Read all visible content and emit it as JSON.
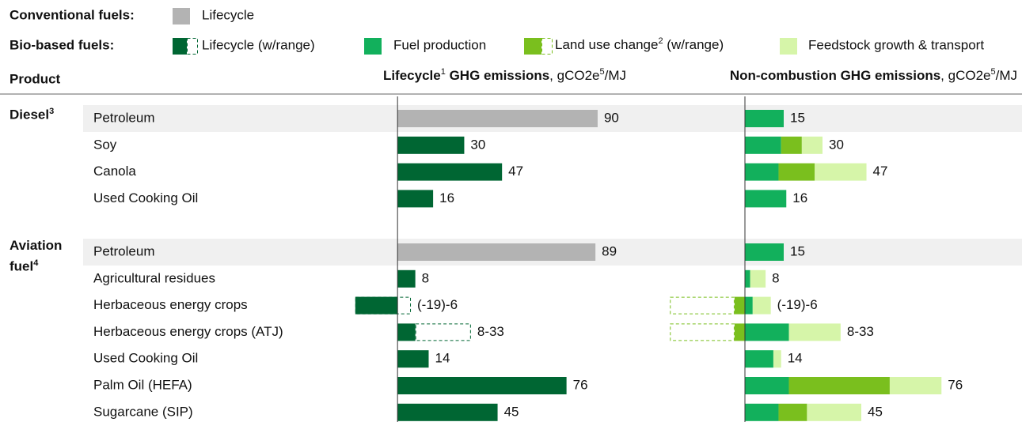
{
  "chart_data": {
    "type": "bar",
    "legend": {
      "conventional_heading": "Conventional fuels:",
      "conventional_lifecycle": {
        "label": "Lifecycle",
        "color": "#b3b3b3"
      },
      "bio_heading": "Bio-based fuels:",
      "bio_lifecycle": {
        "label": "Lifecycle (w/range)",
        "color": "#006633"
      },
      "fuel_production": {
        "label": "Fuel production",
        "color": "#12b05c"
      },
      "land_use_change": {
        "label": "Land use change",
        "sup": "2",
        "suffix": " (w/range)",
        "color": "#7abf1e"
      },
      "feedstock": {
        "label": "Feedstock growth & transport",
        "color": "#d6f5a9"
      }
    },
    "product_header": "Product",
    "left_header": {
      "bold": "Lifecycle",
      "sup": "1",
      "bold2": " GHG emissions",
      "unit": ", gCO2e",
      "sup2": "5",
      "unit2": "/MJ"
    },
    "right_header": {
      "bold": "Non-combustion GHG emissions",
      "unit": ", gCO2e",
      "sup2": "5",
      "unit2": "/MJ"
    },
    "left_xlim": [
      -20,
      95
    ],
    "right_xlim": [
      -30,
      105
    ],
    "groups": [
      {
        "name": "Diesel",
        "sup": "3",
        "rows": [
          {
            "label": "Petroleum",
            "conventional": true,
            "lifecycle": 90,
            "fuel_production": 15,
            "total": 15
          },
          {
            "label": "Soy",
            "conventional": false,
            "lifecycle": 30,
            "fuel_production": 14,
            "land_use_change": 8,
            "feedstock": 8,
            "total": 30
          },
          {
            "label": "Canola",
            "conventional": false,
            "lifecycle": 47,
            "fuel_production": 13,
            "land_use_change": 14,
            "feedstock": 20,
            "total": 47
          },
          {
            "label": "Used Cooking Oil",
            "conventional": false,
            "lifecycle": 16,
            "fuel_production": 16,
            "total": 16
          }
        ]
      },
      {
        "name": "Aviation fuel",
        "sup": "4",
        "rows": [
          {
            "label": "Petroleum",
            "conventional": true,
            "lifecycle": 89,
            "fuel_production": 15,
            "total": 15
          },
          {
            "label": "Agricultural residues",
            "conventional": false,
            "lifecycle": 8,
            "fuel_production": 2,
            "feedstock": 6,
            "total": 8
          },
          {
            "label": "Herbaceous energy crops",
            "conventional": false,
            "lifecycle": -19,
            "lifecycle_high": 6,
            "lifecycle_label": "(-19)-6",
            "fuel_production": 3,
            "land_use_change": -4,
            "luc_range_low": -29,
            "feedstock": 7,
            "total": 6,
            "total_label": "(-19)-6"
          },
          {
            "label": "Herbaceous energy crops (ATJ)",
            "conventional": false,
            "lifecycle": 8,
            "lifecycle_high": 33,
            "lifecycle_label": "8-33",
            "fuel_production": 17,
            "land_use_change": -4,
            "luc_range_low": -29,
            "feedstock": 20,
            "total": 33,
            "total_label": "8-33"
          },
          {
            "label": "Used Cooking Oil",
            "conventional": false,
            "lifecycle": 14,
            "fuel_production": 11,
            "feedstock": 3,
            "total": 14
          },
          {
            "label": "Palm Oil (HEFA)",
            "conventional": false,
            "lifecycle": 76,
            "fuel_production": 17,
            "land_use_change": 39,
            "feedstock": 20,
            "total": 76
          },
          {
            "label": "Sugarcane (SIP)",
            "conventional": false,
            "lifecycle": 45,
            "fuel_production": 13,
            "land_use_change": 11,
            "feedstock": 21,
            "total": 45
          }
        ]
      }
    ]
  }
}
